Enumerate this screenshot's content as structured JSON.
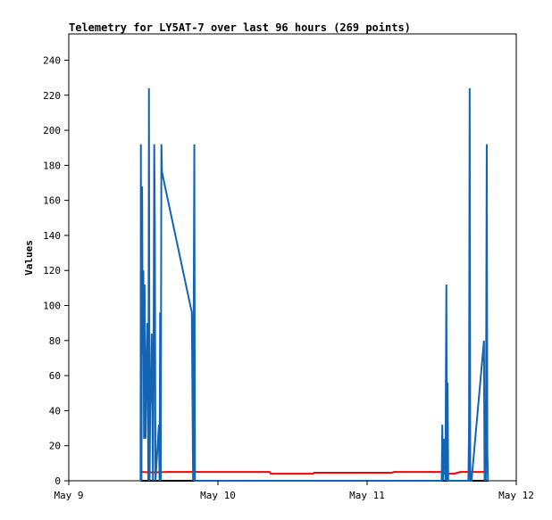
{
  "chart_data": {
    "type": "line",
    "title": "Telemetry for LY5AT-7 over last 96 hours (269 points)",
    "xlabel": "",
    "ylabel": "Values",
    "x_range": [
      "May 9 00:00",
      "May 12 00:00"
    ],
    "ylim": [
      0,
      255
    ],
    "x_ticks": [
      {
        "label": "May 9",
        "hour": 0
      },
      {
        "label": "May 10",
        "hour": 24
      },
      {
        "label": "May 11",
        "hour": 48
      },
      {
        "label": "May 12",
        "hour": 72
      }
    ],
    "y_ticks": [
      0,
      20,
      40,
      60,
      80,
      100,
      120,
      140,
      160,
      180,
      200,
      220,
      240
    ],
    "grid": false,
    "legend": "none",
    "series": [
      {
        "color": "#ff0000",
        "points": [
          [
            11.6,
            5
          ],
          [
            13.5,
            4.8
          ],
          [
            16.0,
            5
          ],
          [
            20.0,
            5
          ],
          [
            24.0,
            5
          ],
          [
            28.0,
            5
          ],
          [
            32.3,
            5
          ],
          [
            32.5,
            4
          ],
          [
            36.0,
            4
          ],
          [
            39.3,
            4
          ],
          [
            39.5,
            4.6
          ],
          [
            44.0,
            4.6
          ],
          [
            48.0,
            4.6
          ],
          [
            52.0,
            4.6
          ],
          [
            52.3,
            5
          ],
          [
            56.0,
            5
          ],
          [
            60.3,
            5
          ],
          [
            60.5,
            4
          ],
          [
            62.0,
            4
          ],
          [
            63.0,
            5
          ],
          [
            67.5,
            5
          ]
        ]
      },
      {
        "color": "#000000",
        "points": [
          [
            11.6,
            0
          ],
          [
            67.5,
            0
          ]
        ]
      },
      {
        "color": "#1464b4",
        "points": [
          [
            11.55,
            0
          ],
          [
            11.6,
            192
          ],
          [
            11.7,
            0
          ],
          [
            11.8,
            168
          ],
          [
            11.9,
            72
          ],
          [
            12.0,
            120
          ],
          [
            12.1,
            24
          ],
          [
            12.2,
            112
          ],
          [
            12.35,
            24
          ],
          [
            12.5,
            64
          ],
          [
            12.65,
            90
          ],
          [
            12.8,
            0
          ],
          [
            12.9,
            224
          ],
          [
            13.0,
            0
          ],
          [
            13.1,
            40
          ],
          [
            13.25,
            60
          ],
          [
            13.35,
            84
          ],
          [
            13.45,
            40
          ],
          [
            13.55,
            0
          ],
          [
            13.65,
            76
          ],
          [
            13.75,
            192
          ],
          [
            13.85,
            144
          ],
          [
            13.95,
            0
          ],
          [
            14.5,
            32
          ],
          [
            14.6,
            0
          ],
          [
            14.7,
            96
          ],
          [
            14.8,
            0
          ],
          [
            14.9,
            192
          ],
          [
            15.0,
            176
          ],
          [
            19.8,
            96
          ],
          [
            20.0,
            0
          ],
          [
            20.1,
            96
          ],
          [
            20.2,
            192
          ],
          [
            20.3,
            0
          ],
          [
            60.0,
            0
          ],
          [
            60.1,
            32
          ],
          [
            60.2,
            0
          ],
          [
            60.4,
            24
          ],
          [
            60.6,
            0
          ],
          [
            60.75,
            112
          ],
          [
            60.85,
            0
          ],
          [
            60.95,
            56
          ],
          [
            61.05,
            0
          ],
          [
            64.3,
            0
          ],
          [
            64.4,
            32
          ],
          [
            64.5,
            224
          ],
          [
            64.6,
            0
          ],
          [
            64.8,
            0
          ],
          [
            66.8,
            80
          ],
          [
            66.9,
            0
          ],
          [
            67.0,
            32
          ],
          [
            67.1,
            0
          ],
          [
            67.25,
            192
          ],
          [
            67.35,
            16
          ],
          [
            67.45,
            0
          ]
        ]
      }
    ]
  }
}
